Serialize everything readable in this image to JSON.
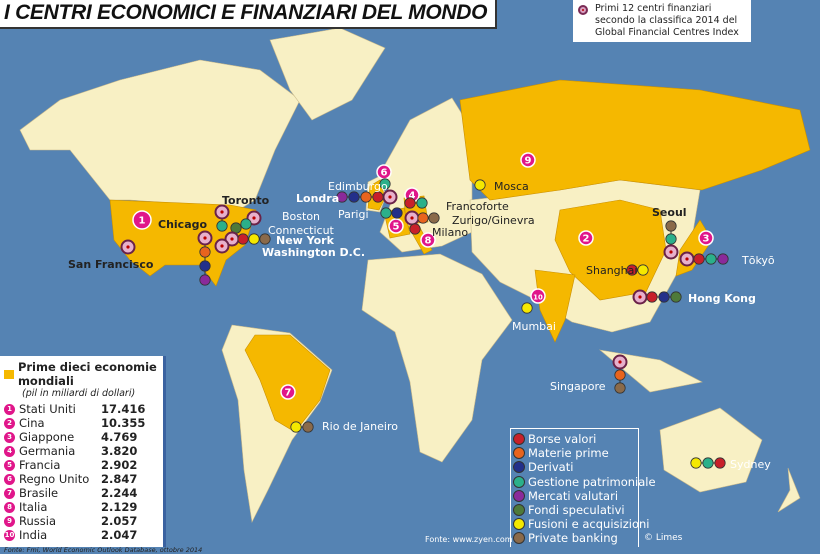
{
  "title": "I CENTRI ECONOMICI E FINANZIARI DEL MONDO",
  "gfci_legend": "Primi 12 centri finanziari secondo la classifica 2014 del Global Financial Centres Index",
  "colors": {
    "ocean": "#5583b3",
    "land": "#f8f0c4",
    "top_economy": "#f5b800",
    "rank_badge": "#e0168a"
  },
  "economies": {
    "heading": "Prime dieci economie mondiali",
    "subheading": "(pil in miliardi di dollari)",
    "rows": [
      {
        "rank": "1",
        "country": "Stati Uniti",
        "gdp": "17.416"
      },
      {
        "rank": "2",
        "country": "Cina",
        "gdp": "10.355"
      },
      {
        "rank": "3",
        "country": "Giappone",
        "gdp": "4.769"
      },
      {
        "rank": "4",
        "country": "Germania",
        "gdp": "3.820"
      },
      {
        "rank": "5",
        "country": "Francia",
        "gdp": "2.902"
      },
      {
        "rank": "6",
        "country": "Regno Unito",
        "gdp": "2.847"
      },
      {
        "rank": "7",
        "country": "Brasile",
        "gdp": "2.244"
      },
      {
        "rank": "8",
        "country": "Italia",
        "gdp": "2.129"
      },
      {
        "rank": "9",
        "country": "Russia",
        "gdp": "2.057"
      },
      {
        "rank": "10",
        "country": "India",
        "gdp": "2.047"
      }
    ],
    "source": "Fonte: Fmi, World Economic Outlook Database, ottobre 2014"
  },
  "categories": [
    {
      "label": "Borse valori",
      "color": "#c8202a"
    },
    {
      "label": "Materie prime",
      "color": "#e8641e"
    },
    {
      "label": "Derivati",
      "color": "#23308a"
    },
    {
      "label": "Gestione patrimoniale",
      "color": "#2bb08a"
    },
    {
      "label": "Mercati valutari",
      "color": "#8a2a9a"
    },
    {
      "label": "Fondi speculativi",
      "color": "#4e7a3a"
    },
    {
      "label": "Fusioni e acquisizioni",
      "color": "#f5e800"
    },
    {
      "label": "Private banking",
      "color": "#8a6a4a"
    }
  ],
  "cities": [
    {
      "name": "San Francisco",
      "gfci": true,
      "cats": []
    },
    {
      "name": "Chicago",
      "gfci": true,
      "cats": [
        1,
        2,
        4
      ]
    },
    {
      "name": "Toronto",
      "gfci": true,
      "cats": [
        3
      ]
    },
    {
      "name": "Boston",
      "gfci": true,
      "cats": []
    },
    {
      "name": "Connecticut",
      "gfci": false,
      "cats": [
        5,
        3
      ]
    },
    {
      "name": "New York",
      "gfci": true,
      "cats": [
        0,
        6,
        7
      ]
    },
    {
      "name": "Washington D.C.",
      "gfci": true,
      "cats": []
    },
    {
      "name": "Rio de Janeiro",
      "gfci": false,
      "cats": [
        6,
        7
      ]
    },
    {
      "name": "Edimburgo",
      "gfci": false,
      "cats": [
        3
      ]
    },
    {
      "name": "Londra",
      "gfci": true,
      "cats": [
        0,
        1,
        2,
        4
      ]
    },
    {
      "name": "Parigi",
      "gfci": false,
      "cats": [
        3,
        2
      ]
    },
    {
      "name": "Francoforte",
      "gfci": false,
      "cats": [
        0,
        3
      ]
    },
    {
      "name": "Zurigo/Ginevra",
      "gfci": true,
      "cats": [
        1,
        7
      ]
    },
    {
      "name": "Milano",
      "gfci": false,
      "cats": [
        0
      ]
    },
    {
      "name": "Mosca",
      "gfci": false,
      "cats": [
        6
      ]
    },
    {
      "name": "Mumbai",
      "gfci": false,
      "cats": [
        6
      ]
    },
    {
      "name": "Seoul",
      "gfci": true,
      "cats": [
        3,
        7
      ]
    },
    {
      "name": "Shanghai",
      "gfci": false,
      "cats": [
        6,
        0
      ]
    },
    {
      "name": "Tōkyō",
      "gfci": true,
      "cats": [
        0,
        3,
        4
      ]
    },
    {
      "name": "Hong Kong",
      "gfci": true,
      "cats": [
        0,
        2,
        5
      ]
    },
    {
      "name": "Singapore",
      "gfci": true,
      "cats": [
        1,
        7
      ]
    },
    {
      "name": "Sydney",
      "gfci": false,
      "cats": [
        6,
        3,
        0
      ]
    }
  ],
  "footer": {
    "source": "Fonte: www.zyen.com",
    "copyright": "© Limes"
  }
}
